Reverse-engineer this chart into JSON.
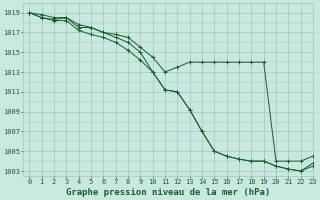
{
  "title": "Graphe pression niveau de la mer (hPa)",
  "background_color": "#c8e8e0",
  "plot_bg_color": "#c8e8e0",
  "grid_color": "#a0c8b8",
  "line_color": "#1a5c30",
  "marker_color": "#1a5c30",
  "xlim": [
    -0.5,
    23
  ],
  "ylim": [
    1002.5,
    1020
  ],
  "yticks": [
    1003,
    1005,
    1007,
    1009,
    1011,
    1013,
    1015,
    1017,
    1019
  ],
  "xticks": [
    0,
    1,
    2,
    3,
    4,
    5,
    6,
    7,
    8,
    9,
    10,
    11,
    12,
    13,
    14,
    15,
    16,
    17,
    18,
    19,
    20,
    21,
    22,
    23
  ],
  "series": [
    [
      1019,
      1018.5,
      1018.2,
      1018.2,
      1017.2,
      1016.8,
      1016.5,
      1016.0,
      1015.2,
      1014.2,
      1013.0,
      1011.2,
      1011.0,
      1009.2,
      1007.0,
      1005.0,
      1004.5,
      1004.2,
      1004.0,
      1004.0,
      1003.5,
      1003.2,
      1003.0,
      1003.5
    ],
    [
      1019,
      1018.8,
      1018.5,
      1018.5,
      1017.8,
      1017.5,
      1017.0,
      1016.5,
      1016.0,
      1015.0,
      1013.0,
      1011.2,
      1011.0,
      1009.2,
      1007.0,
      1005.0,
      1004.5,
      1004.2,
      1004.0,
      1004.0,
      1003.5,
      1003.2,
      1003.0,
      1003.8
    ],
    [
      1019,
      1018.5,
      1018.3,
      1018.5,
      1017.5,
      1017.5,
      1017.0,
      1016.8,
      1016.5,
      1015.5,
      1014.5,
      1013.0,
      1013.5,
      1014.0,
      1014.0,
      1014.0,
      1014.0,
      1014.0,
      1014.0,
      1014.0,
      1004.0,
      1004.0,
      1004.0,
      1004.5
    ]
  ],
  "font_color": "#1a5c30",
  "title_fontsize": 6.5,
  "tick_fontsize": 5.0
}
